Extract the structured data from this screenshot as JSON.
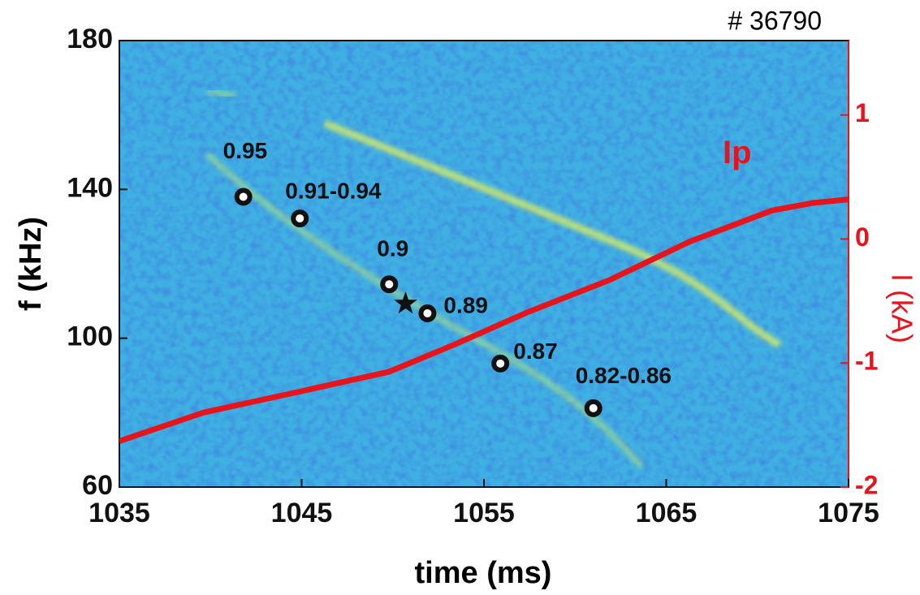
{
  "chart_data": {
    "type": "scatter",
    "title": "# 36790",
    "xlabel": "time (ms)",
    "ylabel": "f (kHz)",
    "y2label": "I (kA)",
    "xlim": [
      1035,
      1075
    ],
    "ylim": [
      60,
      180
    ],
    "y2lim": [
      -2,
      1.6
    ],
    "xticks": [
      1035,
      1045,
      1055,
      1065,
      1075
    ],
    "yticks": [
      60,
      100,
      140,
      180
    ],
    "y2ticks": [
      -2,
      -1,
      0,
      1
    ],
    "markers": {
      "x": [
        1041.8,
        1044.9,
        1049.8,
        1051.9,
        1055.9,
        1061
      ],
      "values": [
        138,
        132.2,
        114.5,
        106.7,
        93.2,
        81.2
      ],
      "labels": [
        "0.95",
        "0.91-0.94",
        "0.9",
        "0.89",
        "0.87",
        "0.82-0.86"
      ],
      "color": "#111111"
    },
    "star": {
      "x": 1050.7,
      "y": 109.3,
      "color": "#111111"
    },
    "series": [
      {
        "name": "Ip",
        "color": "#e8141c",
        "axis": "y2",
        "x": [
          1035,
          1039.6,
          1044.9,
          1049.8,
          1053.4,
          1057.4,
          1061.9,
          1066.3,
          1070.8,
          1073,
          1075
        ],
        "values": [
          -1.63,
          -1.4,
          -1.23,
          -1.07,
          -0.85,
          -0.59,
          -0.33,
          -0.02,
          0.23,
          0.29,
          0.32
        ]
      }
    ]
  }
}
